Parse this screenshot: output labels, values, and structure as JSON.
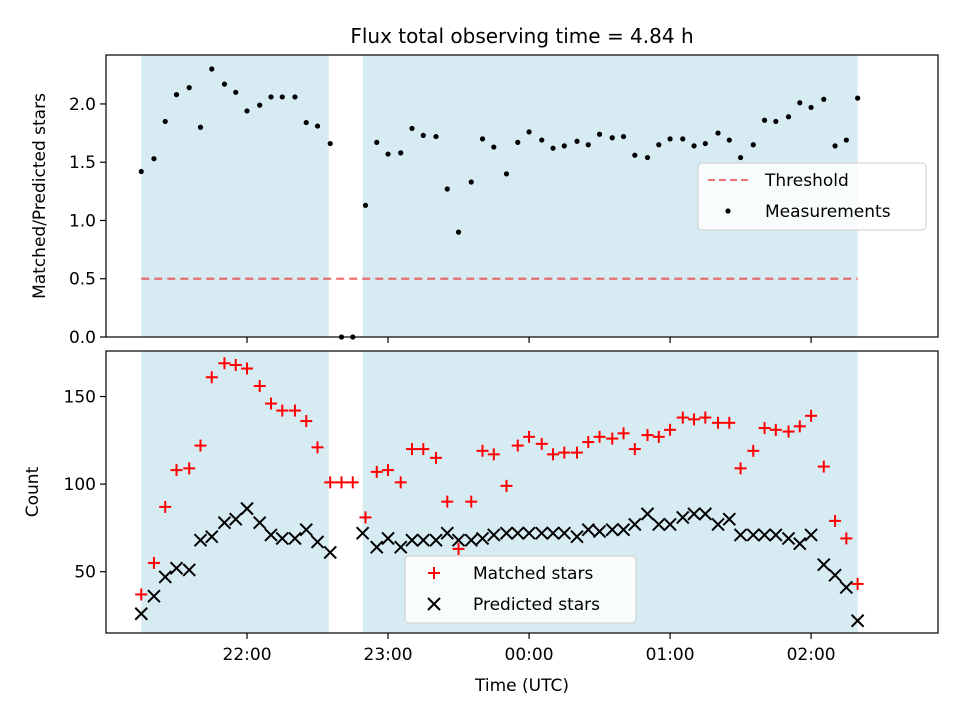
{
  "title": "Flux total observing time = 4.84 h",
  "colors": {
    "shade": "#add8e6",
    "threshold": "#e8504f",
    "measurements": "#000000",
    "matched": "#ff0000",
    "predicted": "#000000"
  },
  "chart_data": [
    {
      "type": "scatter",
      "ylabel": "Matched/Predicted stars",
      "ylim": [
        0,
        2.42
      ],
      "yticks": [
        0.0,
        0.5,
        1.0,
        1.5,
        2.0
      ],
      "ytick_labels": [
        "0.0",
        "0.5",
        "1.0",
        "1.5",
        "2.0"
      ],
      "xlim_hours": [
        21.0,
        26.9
      ],
      "xticks_hours": [
        22,
        23,
        24,
        25,
        26
      ],
      "shaded_intervals_hours": [
        [
          21.25,
          22.58
        ],
        [
          22.82,
          26.33
        ]
      ],
      "threshold": {
        "name": "Threshold",
        "y": 0.5,
        "x_range_hours": [
          21.25,
          26.33
        ]
      },
      "legend": {
        "placement": "center right",
        "entries": [
          "Threshold",
          "Measurements"
        ]
      },
      "series": [
        {
          "name": "Measurements",
          "x_hours": [
            21.25,
            21.34,
            21.42,
            21.5,
            21.59,
            21.67,
            21.75,
            21.84,
            21.92,
            22.0,
            22.09,
            22.17,
            22.25,
            22.34,
            22.42,
            22.5,
            22.59,
            22.67,
            22.75,
            22.84,
            22.92,
            23.0,
            23.09,
            23.17,
            23.25,
            23.34,
            23.42,
            23.5,
            23.59,
            23.67,
            23.75,
            23.84,
            23.92,
            24.0,
            24.09,
            24.17,
            24.25,
            24.34,
            24.42,
            24.5,
            24.59,
            24.67,
            24.75,
            24.84,
            24.92,
            25.0,
            25.09,
            25.17,
            25.25,
            25.34,
            25.42,
            25.5,
            25.59,
            25.67,
            25.75,
            25.84,
            25.92,
            26.0,
            26.09,
            26.17,
            26.25,
            26.33
          ],
          "values": [
            1.42,
            1.53,
            1.85,
            2.08,
            2.14,
            1.8,
            2.3,
            2.17,
            2.1,
            1.94,
            1.99,
            2.06,
            2.06,
            2.06,
            1.84,
            1.81,
            1.66,
            0.0,
            0.0,
            1.13,
            1.67,
            1.57,
            1.58,
            1.79,
            1.73,
            1.72,
            1.27,
            0.9,
            1.33,
            1.7,
            1.63,
            1.4,
            1.67,
            1.76,
            1.69,
            1.62,
            1.64,
            1.68,
            1.65,
            1.74,
            1.71,
            1.72,
            1.56,
            1.54,
            1.65,
            1.7,
            1.7,
            1.64,
            1.66,
            1.75,
            1.69,
            1.54,
            1.65,
            1.86,
            1.85,
            1.89,
            2.01,
            1.97,
            2.04,
            1.64,
            1.69,
            2.05
          ]
        }
      ]
    },
    {
      "type": "scatter",
      "ylabel": "Count",
      "xlabel": "Time (UTC)",
      "ylim": [
        15,
        176
      ],
      "yticks": [
        50,
        100,
        150
      ],
      "ytick_labels": [
        "50",
        "100",
        "150"
      ],
      "xlim_hours": [
        21.0,
        26.9
      ],
      "xticks_hours": [
        22,
        23,
        24,
        25,
        26
      ],
      "xtick_labels": [
        "22:00",
        "23:00",
        "00:00",
        "01:00",
        "02:00"
      ],
      "shaded_intervals_hours": [
        [
          21.25,
          22.58
        ],
        [
          22.82,
          26.33
        ]
      ],
      "legend": {
        "placement": "lower center",
        "entries": [
          "Matched stars",
          "Predicted stars"
        ]
      },
      "series": [
        {
          "name": "Matched stars",
          "marker": "plus",
          "x_hours": [
            21.25,
            21.34,
            21.42,
            21.5,
            21.59,
            21.67,
            21.75,
            21.84,
            21.92,
            22.0,
            22.09,
            22.17,
            22.25,
            22.34,
            22.42,
            22.5,
            22.59,
            22.67,
            22.75,
            22.84,
            22.92,
            23.0,
            23.09,
            23.17,
            23.25,
            23.34,
            23.42,
            23.5,
            23.59,
            23.67,
            23.75,
            23.84,
            23.92,
            24.0,
            24.09,
            24.17,
            24.25,
            24.34,
            24.42,
            24.5,
            24.59,
            24.67,
            24.75,
            24.84,
            24.92,
            25.0,
            25.09,
            25.17,
            25.25,
            25.34,
            25.42,
            25.5,
            25.59,
            25.67,
            25.75,
            25.84,
            25.92,
            26.0,
            26.09,
            26.17,
            26.25,
            26.33
          ],
          "values": [
            37,
            55,
            87,
            108,
            109,
            122,
            161,
            169,
            168,
            166,
            156,
            146,
            142,
            142,
            136,
            121,
            101,
            101,
            101,
            81,
            107,
            108,
            101,
            120,
            120,
            115,
            90,
            63,
            90,
            119,
            117,
            99,
            122,
            127,
            123,
            117,
            118,
            118,
            124,
            127,
            126,
            129,
            120,
            128,
            127,
            131,
            138,
            137,
            138,
            135,
            135,
            109,
            119,
            132,
            131,
            130,
            133,
            139,
            110,
            79,
            69,
            43
          ]
        },
        {
          "name": "Predicted stars",
          "marker": "x",
          "x_hours": [
            21.25,
            21.34,
            21.42,
            21.5,
            21.59,
            21.67,
            21.75,
            21.84,
            21.92,
            22.0,
            22.09,
            22.17,
            22.25,
            22.34,
            22.42,
            22.5,
            22.59,
            22.82,
            22.92,
            23.0,
            23.09,
            23.17,
            23.25,
            23.34,
            23.42,
            23.5,
            23.59,
            23.67,
            23.75,
            23.84,
            23.92,
            24.0,
            24.09,
            24.17,
            24.25,
            24.34,
            24.42,
            24.5,
            24.59,
            24.67,
            24.75,
            24.84,
            24.92,
            25.0,
            25.09,
            25.17,
            25.25,
            25.34,
            25.42,
            25.5,
            25.59,
            25.67,
            25.75,
            25.84,
            25.92,
            26.0,
            26.09,
            26.17,
            26.25,
            26.33
          ],
          "values": [
            26,
            36,
            47,
            52,
            51,
            68,
            70,
            78,
            80,
            86,
            78,
            71,
            69,
            69,
            74,
            67,
            61,
            72,
            64,
            69,
            64,
            68,
            68,
            68,
            72,
            68,
            68,
            69,
            71,
            72,
            72,
            72,
            72,
            72,
            72,
            70,
            74,
            73,
            74,
            74,
            77,
            83,
            77,
            77,
            81,
            83,
            83,
            77,
            80,
            71,
            71,
            71,
            71,
            69,
            66,
            71,
            54,
            48,
            41,
            22
          ]
        }
      ]
    }
  ]
}
